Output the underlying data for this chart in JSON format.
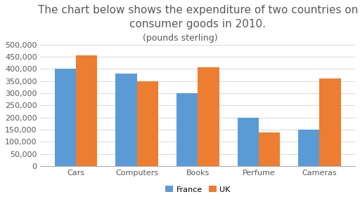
{
  "title": "The chart below shows the expenditure of two countries on\nconsumer goods in 2010.\n(pounds sterling)",
  "title_line1": "The chart below shows the expenditure of two countries on",
  "title_line2": "consumer goods in 2010.",
  "subtitle": "(pounds sterling)",
  "categories": [
    "Cars",
    "Computers",
    "Books",
    "Perfume",
    "Cameras"
  ],
  "france": [
    400000,
    380000,
    300000,
    200000,
    150000
  ],
  "uk": [
    455000,
    350000,
    407000,
    140000,
    360000
  ],
  "france_color": "#5B9BD5",
  "uk_color": "#ED7D31",
  "ylim": [
    0,
    500000
  ],
  "yticks": [
    0,
    50000,
    100000,
    150000,
    200000,
    250000,
    300000,
    350000,
    400000,
    450000,
    500000
  ],
  "legend_labels": [
    "France",
    "UK"
  ],
  "background_color": "#FFFFFF",
  "title_fontsize": 11,
  "subtitle_fontsize": 9,
  "axis_fontsize": 8,
  "bar_width": 0.35,
  "title_color": "#595959",
  "tick_color": "#595959"
}
